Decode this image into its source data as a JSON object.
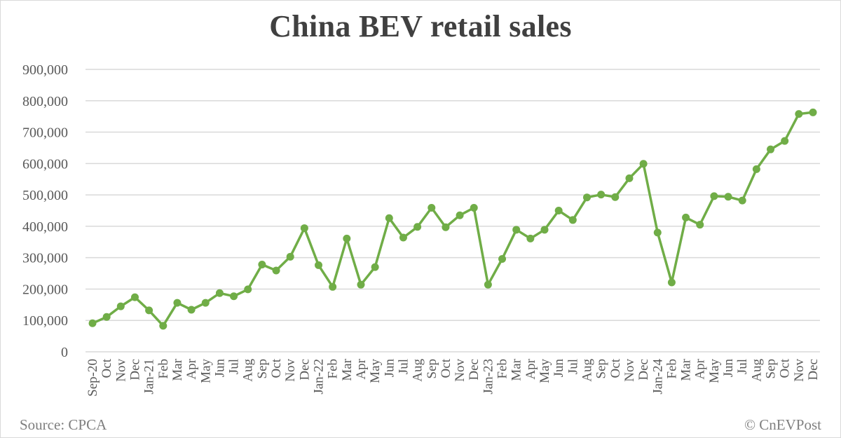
{
  "chart_data": {
    "type": "line",
    "title": "China BEV retail sales",
    "xlabel": "",
    "ylabel": "",
    "ylim": [
      0,
      900000
    ],
    "yticks": [
      0,
      100000,
      200000,
      300000,
      400000,
      500000,
      600000,
      700000,
      800000,
      900000
    ],
    "ytick_labels": [
      "0",
      "100,000",
      "200,000",
      "300,000",
      "400,000",
      "500,000",
      "600,000",
      "700,000",
      "800,000",
      "900,000"
    ],
    "grid": true,
    "legend": null,
    "categories": [
      "Sep-20",
      "Oct",
      "Nov",
      "Dec",
      "Jan-21",
      "Feb",
      "Mar",
      "Apr",
      "May",
      "Jun",
      "Jul",
      "Aug",
      "Sep",
      "Oct",
      "Nov",
      "Dec",
      "Jan-22",
      "Feb",
      "Mar",
      "Apr",
      "May",
      "Jun",
      "Jul",
      "Aug",
      "Sep",
      "Oct",
      "Nov",
      "Dec",
      "Jan-23",
      "Feb",
      "Mar",
      "Apr",
      "May",
      "Jun",
      "Jul",
      "Aug",
      "Sep",
      "Oct",
      "Nov",
      "Dec",
      "Jan-24",
      "Feb",
      "Mar",
      "Apr",
      "May",
      "Jun",
      "Jul",
      "Aug",
      "Sep",
      "Oct",
      "Nov",
      "Dec"
    ],
    "series": [
      {
        "name": "BEV retail sales",
        "color": "#70ad47",
        "values": [
          91000,
          111000,
          145000,
          174000,
          132000,
          83000,
          156000,
          134000,
          156000,
          187000,
          177000,
          199000,
          278000,
          259000,
          303000,
          394000,
          276000,
          207000,
          361000,
          214000,
          270000,
          426000,
          364000,
          398000,
          459000,
          397000,
          435000,
          459000,
          214000,
          296000,
          389000,
          361000,
          389000,
          450000,
          420000,
          492000,
          501000,
          493000,
          553000,
          599000,
          380000,
          221000,
          428000,
          405000,
          496000,
          494000,
          482000,
          582000,
          645000,
          672000,
          758000,
          763000
        ]
      }
    ]
  },
  "colors": {
    "line": "#70ad47",
    "grid": "#d9d9d9",
    "text": "#595959",
    "title": "#404040"
  },
  "footer": {
    "source": "Source: CPCA",
    "copyright": "© CnEVPost"
  }
}
